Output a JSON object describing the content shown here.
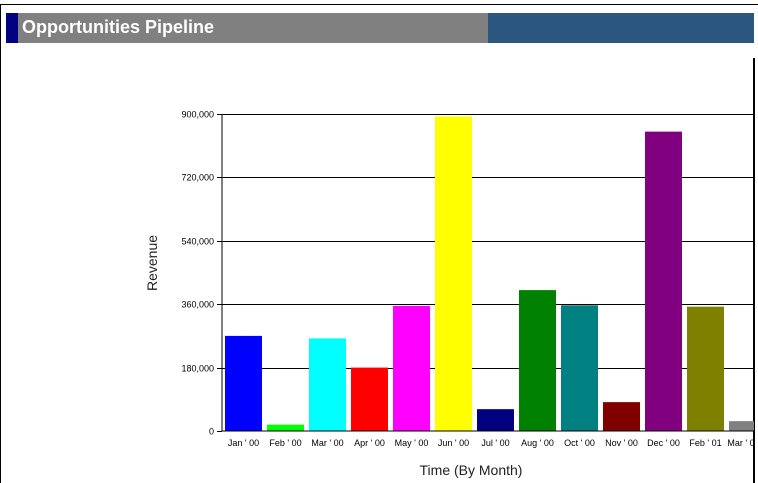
{
  "header": {
    "title": "Opportunities Pipeline"
  },
  "colors": {
    "title_bar_gray": "#808080",
    "title_bar_blue": "#2b567f",
    "title_accent": "#000080"
  },
  "chart_data": {
    "type": "bar",
    "title": "",
    "xlabel": "Time (By Month)",
    "ylabel": "Revenue",
    "ylim": [
      0,
      900000
    ],
    "yticks": [
      0,
      180000,
      360000,
      540000,
      720000,
      900000
    ],
    "ytick_labels": [
      "0",
      "180,000",
      "360,000",
      "540,000",
      "720,000",
      "900,000"
    ],
    "grid": true,
    "categories": [
      "Jan ' 00",
      "Feb ' 00",
      "Mar ' 00",
      "Apr ' 00",
      "May ' 00",
      "Jun ' 00",
      "Jul ' 00",
      "Aug ' 00",
      "Oct ' 00",
      "Nov ' 00",
      "Dec ' 00",
      "Feb ' 01",
      "Mar ' 0"
    ],
    "values": [
      270000,
      18000,
      263000,
      180000,
      355000,
      893000,
      62000,
      400000,
      357000,
      82000,
      850000,
      353000,
      28000
    ],
    "bar_colors": [
      "#0000ff",
      "#00ff00",
      "#00ffff",
      "#ff0000",
      "#ff00ff",
      "#ffff00",
      "#000080",
      "#008000",
      "#008080",
      "#800000",
      "#800080",
      "#808000",
      "#808080"
    ]
  }
}
